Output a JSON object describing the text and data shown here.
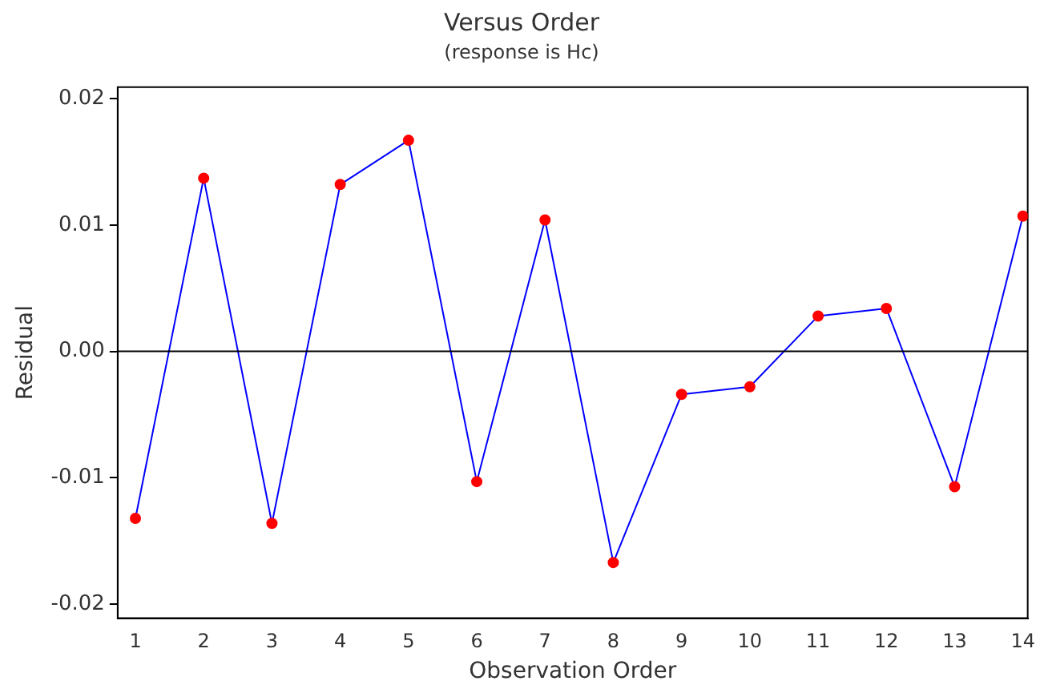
{
  "chart_data": {
    "type": "line",
    "title": "Versus Order",
    "subtitle": "(response is Hc)",
    "xlabel": "Observation Order",
    "ylabel": "Residual",
    "x": [
      1,
      2,
      3,
      4,
      5,
      6,
      7,
      8,
      9,
      10,
      11,
      12,
      13,
      14
    ],
    "series": [
      {
        "color": "#0000ff",
        "colors": [
          "#ff0000",
          "#ff0000",
          "#ff0000",
          "#ff0000",
          "#ff0000",
          "#ff0000",
          "#ff0000",
          "#ff0000",
          "#ff0000",
          "#ff0000",
          "#ff0000",
          "#ff0000",
          "#ff0000",
          "#ff0000"
        ],
        "values": [
          -0.0132,
          0.0137,
          -0.0136,
          0.0132,
          0.0167,
          -0.0103,
          0.0104,
          -0.0167,
          -0.0034,
          -0.0028,
          0.0028,
          0.0034,
          -0.0107,
          0.0107
        ]
      }
    ],
    "marker": "circle",
    "line_style": "solid",
    "grid": false,
    "legend": false,
    "xlim": [
      0.74,
      14.07
    ],
    "xticks": [
      1,
      2,
      3,
      4,
      5,
      6,
      7,
      8,
      9,
      10,
      11,
      12,
      13,
      14
    ],
    "ylim": [
      -0.0211,
      0.0209
    ],
    "yticks": [
      -0.02,
      -0.01,
      {
        "value": 0,
        "label": "0.00"
      },
      0.01,
      0.02
    ],
    "ref_lines": [
      {
        "axis": "y",
        "value": 0,
        "color": "#000000"
      }
    ]
  }
}
